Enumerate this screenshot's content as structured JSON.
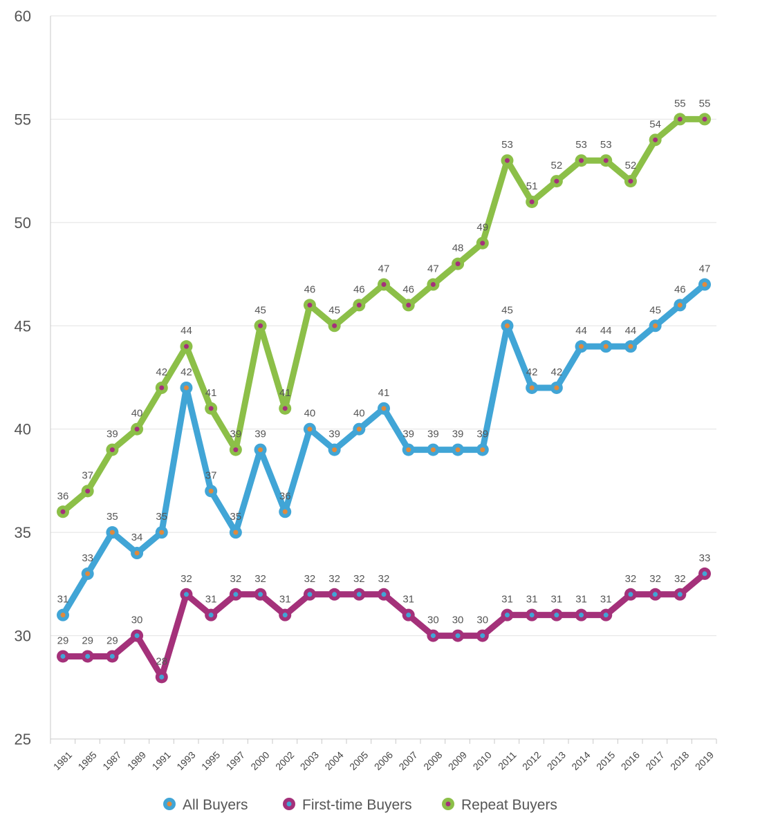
{
  "chart_data": {
    "type": "line",
    "title": "",
    "xlabel": "",
    "ylabel": "",
    "ylim": [
      25,
      60
    ],
    "yticks": [
      25,
      30,
      35,
      40,
      45,
      50,
      55,
      60
    ],
    "grid": true,
    "legend_position": "bottom",
    "categories": [
      "1981",
      "1985",
      "1987",
      "1989",
      "1991",
      "1993",
      "1995",
      "1997",
      "2000",
      "2002",
      "2003",
      "2004",
      "2005",
      "2006",
      "2007",
      "2008",
      "2009",
      "2010",
      "2011",
      "2012",
      "2013",
      "2014",
      "2015",
      "2016",
      "2017",
      "2018",
      "2019"
    ],
    "series": [
      {
        "name": "All Buyers",
        "color": "#41a5d6",
        "marker_color": "#e08a3c",
        "values": [
          31,
          33,
          35,
          34,
          35,
          42,
          37,
          35,
          39,
          36,
          40,
          39,
          40,
          41,
          39,
          39,
          39,
          39,
          45,
          42,
          42,
          44,
          44,
          44,
          45,
          46,
          47
        ]
      },
      {
        "name": "First-time Buyers",
        "color": "#a4317a",
        "marker_color": "#41a5d6",
        "values": [
          29,
          29,
          29,
          30,
          28,
          32,
          31,
          32,
          32,
          31,
          32,
          32,
          32,
          32,
          31,
          30,
          30,
          30,
          31,
          31,
          31,
          31,
          31,
          32,
          32,
          32,
          33
        ]
      },
      {
        "name": "Repeat Buyers",
        "color": "#8cbf48",
        "marker_color": "#a4317a",
        "values": [
          36,
          37,
          39,
          40,
          42,
          44,
          41,
          39,
          45,
          41,
          46,
          45,
          46,
          47,
          46,
          47,
          48,
          49,
          53,
          51,
          52,
          53,
          53,
          52,
          54,
          55,
          55
        ]
      }
    ]
  }
}
